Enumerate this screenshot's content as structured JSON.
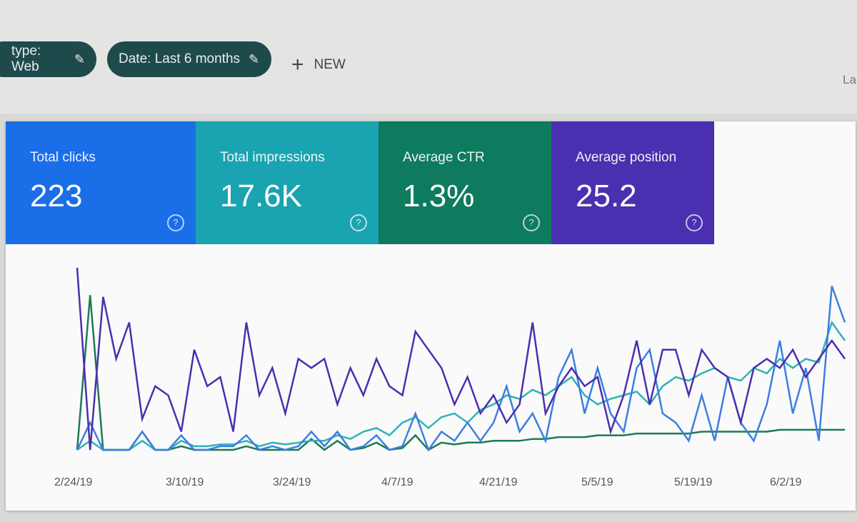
{
  "filters": {
    "type_chip": "type: Web",
    "date_chip": "Date: Last 6 months",
    "new_label": "NEW",
    "cutoff_text": "La"
  },
  "metrics": [
    {
      "label": "Total clicks",
      "value": "223",
      "color": "#1a6ee8"
    },
    {
      "label": "Total impressions",
      "value": "17.6K",
      "color": "#1aa3b0"
    },
    {
      "label": "Average CTR",
      "value": "1.3%",
      "color": "#0e7b5e"
    },
    {
      "label": "Average position",
      "value": "25.2",
      "color": "#4a2fb0"
    }
  ],
  "chart_data": {
    "type": "line",
    "x_tick_labels": [
      "2/24/19",
      "3/10/19",
      "3/24/19",
      "4/7/19",
      "4/21/19",
      "5/5/19",
      "5/19/19",
      "6/2/19"
    ],
    "grid": false,
    "series": [
      {
        "metric": "Average position",
        "color": "#4a2fb0",
        "values": [
          100,
          0,
          84,
          50,
          70,
          17,
          35,
          30,
          10,
          55,
          35,
          40,
          10,
          70,
          30,
          45,
          20,
          50,
          45,
          50,
          25,
          45,
          30,
          50,
          35,
          30,
          65,
          55,
          45,
          25,
          40,
          20,
          30,
          15,
          25,
          70,
          20,
          35,
          45,
          35,
          40,
          10,
          30,
          60,
          25,
          55,
          55,
          30,
          55,
          45,
          40,
          15,
          45,
          50,
          45,
          55,
          40,
          50,
          60,
          50
        ]
      },
      {
        "metric": "Total clicks",
        "color": "#3b7fe0",
        "values": [
          0,
          15,
          0,
          0,
          0,
          10,
          0,
          0,
          8,
          0,
          0,
          2,
          2,
          8,
          0,
          2,
          0,
          2,
          10,
          2,
          10,
          0,
          2,
          8,
          0,
          2,
          20,
          0,
          10,
          5,
          15,
          5,
          15,
          35,
          10,
          20,
          5,
          40,
          55,
          20,
          45,
          20,
          10,
          45,
          55,
          20,
          15,
          5,
          30,
          5,
          40,
          15,
          5,
          25,
          60,
          20,
          45,
          5,
          90,
          70
        ]
      },
      {
        "metric": "Total impressions",
        "color": "#2eb3b8",
        "values": [
          0,
          5,
          0,
          0,
          0,
          5,
          0,
          0,
          5,
          2,
          2,
          3,
          3,
          5,
          2,
          4,
          3,
          4,
          5,
          5,
          8,
          6,
          10,
          12,
          8,
          15,
          18,
          12,
          18,
          20,
          15,
          22,
          25,
          30,
          28,
          33,
          30,
          35,
          40,
          30,
          25,
          28,
          30,
          32,
          25,
          35,
          40,
          38,
          42,
          45,
          40,
          38,
          45,
          42,
          50,
          45,
          50,
          48,
          70,
          60
        ]
      },
      {
        "metric": "Average CTR",
        "color": "#1d7a55",
        "values": [
          0,
          85,
          0,
          0,
          0,
          10,
          0,
          0,
          2,
          0,
          0,
          0,
          0,
          2,
          0,
          0,
          0,
          0,
          6,
          0,
          5,
          0,
          1,
          4,
          0,
          1,
          8,
          0,
          4,
          3,
          4,
          4,
          5,
          5,
          5,
          6,
          6,
          7,
          7,
          7,
          8,
          8,
          8,
          9,
          9,
          9,
          9,
          9,
          10,
          10,
          10,
          10,
          10,
          10,
          11,
          11,
          11,
          11,
          11,
          11
        ]
      }
    ]
  }
}
